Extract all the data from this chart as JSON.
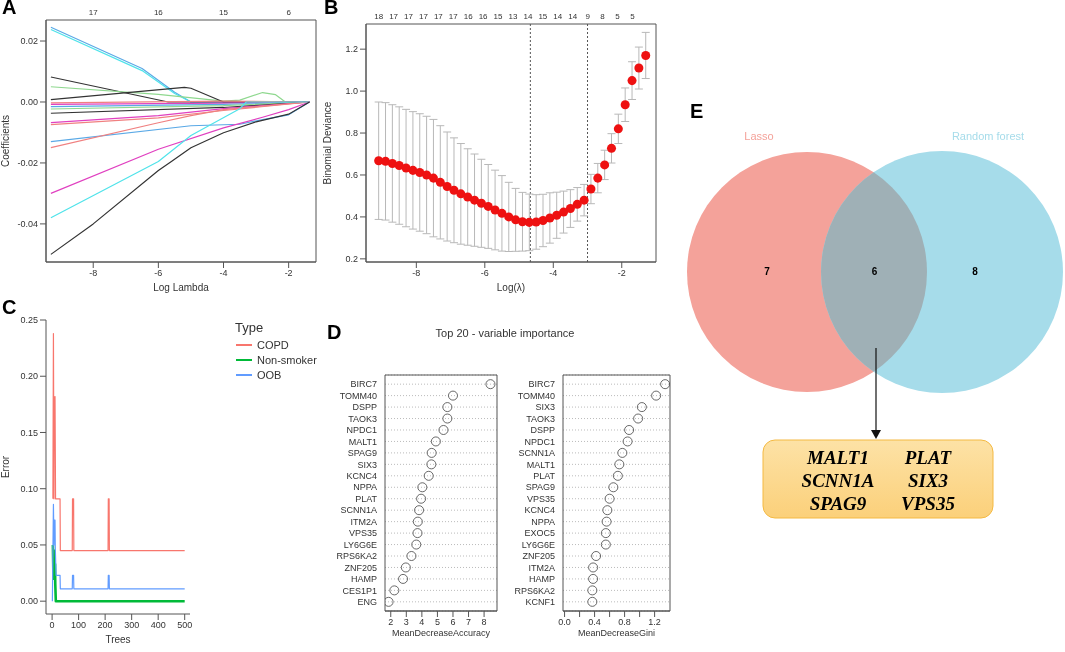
{
  "chart_data": [
    {
      "type": "line",
      "annotations": [
        "A",
        "17",
        "16",
        "15",
        "6"
      ],
      "xlabel": "Log Lambda",
      "ylabel": "Coefficients",
      "xlim": [
        -9.45,
        -1.16
      ],
      "xticks": [
        -8,
        -6,
        -4,
        -2
      ],
      "ylim": [
        -0.0525,
        0.0269
      ],
      "yticks": [
        -0.04,
        -0.02,
        {
          "value": 0,
          "label": "0.00"
        },
        0.02
      ],
      "line_style": "solid",
      "series": [
        {
          "color": "#5aa9e6",
          "x": [
            -9.3,
            -6.5,
            -5.5,
            -5.0,
            -1.36
          ],
          "values": [
            0.0245,
            0.011,
            0.0032,
            0.0,
            0.0
          ]
        },
        {
          "color": "#4fe3ea",
          "x": [
            -9.3,
            -6.5,
            -5.5,
            -5.0,
            -1.36
          ],
          "values": [
            0.0238,
            0.0103,
            0.0028,
            0.0,
            0.0
          ]
        },
        {
          "color": "#333333",
          "x": [
            -9.3,
            -5.7,
            -1.36
          ],
          "values": [
            0.0082,
            0.0,
            0.0
          ]
        },
        {
          "color": "#8fd88f",
          "x": [
            -9.3,
            -6,
            -4,
            -3.5,
            -2.8,
            -2.4,
            -2.1,
            -1.36
          ],
          "values": [
            0.005,
            0.0025,
            0.0003,
            0.0006,
            0.0031,
            0.0024,
            0.0,
            0.0
          ]
        },
        {
          "color": "#333333",
          "x": [
            -9.3,
            -5.2,
            -5.0,
            -4.0,
            -1.36
          ],
          "values": [
            0.0008,
            0.0048,
            0.0045,
            0.0,
            0.0
          ]
        },
        {
          "color": "#f08080",
          "x": [
            -9.3,
            -4,
            -1.36
          ],
          "values": [
            -0.0003,
            0.0003,
            0.0
          ]
        },
        {
          "color": "#e040c0",
          "x": [
            -9.3,
            -4,
            -1.36
          ],
          "values": [
            -0.0008,
            -0.0004,
            0.0
          ]
        },
        {
          "color": "#5aa9e6",
          "x": [
            -9.3,
            -4,
            -1.36
          ],
          "values": [
            -0.0015,
            -0.0008,
            0.0
          ]
        },
        {
          "color": "#8fd88f",
          "x": [
            -9.3,
            -4,
            -1.36
          ],
          "values": [
            -0.0023,
            -0.0012,
            0.0
          ]
        },
        {
          "color": "#333333",
          "x": [
            -9.3,
            -4,
            -1.36
          ],
          "values": [
            -0.0037,
            -0.0018,
            0.0
          ]
        },
        {
          "color": "#e040c0",
          "x": [
            -9.3,
            -6,
            -4,
            -1.36
          ],
          "values": [
            -0.0068,
            -0.0045,
            -0.0022,
            0.0
          ]
        },
        {
          "color": "#f08080",
          "x": [
            -9.3,
            -6,
            -4,
            -1.36
          ],
          "values": [
            -0.0074,
            -0.0052,
            -0.0028,
            0.0
          ]
        },
        {
          "color": "#5aa9e6",
          "x": [
            -9.3,
            -5,
            -3.5,
            -2.8,
            -2,
            -1.36
          ],
          "values": [
            -0.013,
            -0.0078,
            -0.0073,
            -0.0058,
            -0.0042,
            0.0
          ]
        },
        {
          "color": "#f08080",
          "x": [
            -9.3,
            -6,
            -5,
            -4,
            -1.36
          ],
          "values": [
            -0.015,
            -0.0068,
            -0.0045,
            -0.0025,
            0.0
          ]
        },
        {
          "color": "#e040c0",
          "x": [
            -9.3,
            -6,
            -4,
            -2.8,
            -2,
            -1.36
          ],
          "values": [
            -0.03,
            -0.0155,
            -0.0085,
            -0.005,
            -0.0025,
            0.0
          ]
        },
        {
          "color": "#4fe3ea",
          "x": [
            -9.3,
            -6,
            -5,
            -3.5,
            -3.3,
            -1.36
          ],
          "values": [
            -0.038,
            -0.0195,
            -0.011,
            -0.0022,
            0.0,
            0.0
          ]
        },
        {
          "color": "#333333",
          "x": [
            -9.3,
            -8,
            -6,
            -5.6,
            -5,
            -4,
            -3,
            -2,
            -1.36
          ],
          "values": [
            -0.05,
            -0.04,
            -0.0225,
            -0.0195,
            -0.015,
            -0.0101,
            -0.0065,
            -0.004,
            0.0
          ]
        }
      ]
    },
    {
      "type": "scatter",
      "annotations": [
        "B",
        "18",
        "17",
        "17",
        "17",
        "17",
        "17",
        "16",
        "16",
        "15",
        "13",
        "14",
        "15",
        "14",
        "14",
        "9",
        "8",
        "5",
        "5"
      ],
      "xlabel": "Log(λ)",
      "ylabel": "Binomial Deviance",
      "marker": "circle",
      "xlim": [
        -9.47,
        -1.0
      ],
      "xticks": [
        -8,
        -6,
        -4,
        -2
      ],
      "ylim": [
        0.185,
        1.32
      ],
      "yticks": [
        0.2,
        0.4,
        0.6,
        0.8,
        {
          "value": 1.0,
          "label": "1.0"
        },
        1.2
      ],
      "ref_lines": [
        {
          "axis": "x",
          "value": -4.67,
          "line_style": "dotted",
          "color": "#555555"
        },
        {
          "axis": "x",
          "value": -3.0,
          "line_style": "dotted",
          "color": "#555555"
        }
      ],
      "x": [
        -9.1,
        -8.9,
        -8.7,
        -8.5,
        -8.3,
        -8.1,
        -7.9,
        -7.7,
        -7.5,
        -7.3,
        -7.1,
        -6.9,
        -6.7,
        -6.5,
        -6.3,
        -6.1,
        -5.9,
        -5.7,
        -5.5,
        -5.3,
        -5.1,
        -4.9,
        -4.7,
        -4.5,
        -4.3,
        -4.1,
        -3.9,
        -3.7,
        -3.5,
        -3.3,
        -3.1,
        -2.9,
        -2.7,
        -2.5,
        -2.3,
        -2.1,
        -1.9,
        -1.7,
        -1.5,
        -1.3
      ],
      "series": [
        {
          "color": "#ee1111",
          "values": [
            0.668,
            0.665,
            0.655,
            0.645,
            0.633,
            0.622,
            0.612,
            0.6,
            0.585,
            0.565,
            0.545,
            0.527,
            0.51,
            0.495,
            0.48,
            0.465,
            0.45,
            0.433,
            0.417,
            0.4,
            0.386,
            0.377,
            0.374,
            0.376,
            0.383,
            0.395,
            0.408,
            0.423,
            0.44,
            0.46,
            0.48,
            0.533,
            0.585,
            0.648,
            0.727,
            0.82,
            0.935,
            1.05,
            1.11,
            1.17
          ],
          "errors": [
            0.28,
            0.28,
            0.28,
            0.28,
            0.28,
            0.28,
            0.28,
            0.28,
            0.28,
            0.27,
            0.26,
            0.25,
            0.24,
            0.23,
            0.22,
            0.21,
            0.2,
            0.19,
            0.18,
            0.165,
            0.15,
            0.14,
            0.135,
            0.13,
            0.125,
            0.12,
            0.11,
            0.1,
            0.09,
            0.08,
            0.075,
            0.07,
            0.07,
            0.07,
            0.07,
            0.07,
            0.08,
            0.09,
            0.1,
            0.11
          ]
        }
      ]
    },
    {
      "type": "line",
      "annotations": [
        "C"
      ],
      "xlabel": "Trees",
      "ylabel": "Error",
      "legend": "top right",
      "legend_title": "Type",
      "xlim": [
        -23,
        520
      ],
      "xticks": [
        0,
        100,
        200,
        300,
        400,
        500
      ],
      "ylim": [
        -0.0114,
        0.25
      ],
      "yticks": [
        {
          "value": 0,
          "label": "0.00"
        },
        {
          "value": 0.05,
          "label": "0.05"
        },
        {
          "value": 0.1,
          "label": "0.10"
        },
        {
          "value": 0.15,
          "label": "0.15"
        },
        {
          "value": 0.2,
          "label": "0.20"
        },
        {
          "value": 0.25,
          "label": "0.25"
        }
      ],
      "series": [
        {
          "name": "COPD",
          "color": "#f8766d",
          "x": [
            3,
            5,
            7,
            8,
            10,
            11,
            13,
            30,
            31,
            76,
            77,
            81,
            82,
            211,
            212,
            215,
            216,
            500
          ],
          "values": [
            0.091,
            0.238,
            0.091,
            0.182,
            0.136,
            0.182,
            0.091,
            0.091,
            0.045,
            0.045,
            0.091,
            0.091,
            0.045,
            0.045,
            0.091,
            0.091,
            0.045,
            0.045
          ]
        },
        {
          "name": "Non-smoker",
          "color": "#00ba38",
          "x": [
            3,
            5,
            7,
            9,
            11,
            12,
            14,
            500
          ],
          "values": [
            0.05,
            0.02,
            0.045,
            0.03,
            0.033,
            0.015,
            0.0,
            0.0
          ]
        },
        {
          "name": "OOB",
          "color": "#619cff",
          "x": [
            1,
            5,
            7,
            8,
            11,
            12,
            15,
            30,
            31,
            76,
            77,
            81,
            82,
            211,
            212,
            215,
            216,
            500
          ],
          "values": [
            0.0,
            0.086,
            0.05,
            0.072,
            0.072,
            0.047,
            0.023,
            0.023,
            0.011,
            0.011,
            0.023,
            0.023,
            0.011,
            0.011,
            0.023,
            0.023,
            0.011,
            0.011
          ]
        }
      ]
    },
    {
      "type": "scatter",
      "orientation": "horizontal",
      "annotations": [
        "D"
      ],
      "title": "Top 20 - variable importance",
      "xlabel": "MeanDecreaseAccuracy",
      "grid": "y",
      "marker": "circle",
      "xlim": [
        1.63,
        8.83
      ],
      "xticks": [
        2,
        3,
        4,
        5,
        6,
        7,
        8
      ],
      "categories": [
        "BIRC7",
        "TOMM40",
        "DSPP",
        "TAOK3",
        "NPDC1",
        "MALT1",
        "SPAG9",
        "SIX3",
        "KCNC4",
        "NPPA",
        "PLAT",
        "SCNN1A",
        "ITM2A",
        "VPS35",
        "LY6G6E",
        "RPS6KA2",
        "ZNF205",
        "HAMP",
        "CES1P1",
        "ENG"
      ],
      "values": [
        8.41,
        6.0,
        5.64,
        5.64,
        5.39,
        4.9,
        4.63,
        4.61,
        4.44,
        4.03,
        3.95,
        3.82,
        3.74,
        3.72,
        3.64,
        3.33,
        2.97,
        2.79,
        2.23,
        1.86
      ]
    },
    {
      "type": "scatter",
      "orientation": "horizontal",
      "xlabel": "MeanDecreaseGini",
      "grid": "y",
      "marker": "circle",
      "xlim": [
        -0.021,
        1.405
      ],
      "xticks": [
        {
          "value": 0,
          "label": "0.0"
        },
        {
          "value": 0.2,
          "label": null
        },
        0.4,
        {
          "value": 0.6,
          "label": null
        },
        0.8,
        {
          "value": 1.0,
          "label": null
        },
        1.2
      ],
      "categories": [
        "BIRC7",
        "TOMM40",
        "SIX3",
        "TAOK3",
        "DSPP",
        "NPDC1",
        "SCNN1A",
        "MALT1",
        "PLAT",
        "SPAG9",
        "VPS35",
        "KCNC4",
        "NPPA",
        "EXOC5",
        "LY6G6E",
        "ZNF205",
        "ITM2A",
        "HAMP",
        "RPS6KA2",
        "KCNF1"
      ],
      "values": [
        1.34,
        1.22,
        1.03,
        0.98,
        0.86,
        0.84,
        0.77,
        0.73,
        0.71,
        0.65,
        0.6,
        0.57,
        0.56,
        0.55,
        0.55,
        0.42,
        0.38,
        0.38,
        0.37,
        0.37
      ]
    },
    {
      "type": "other",
      "data_labels": true,
      "annotations": [
        "E",
        "MALT1",
        "PLAT",
        "SCNN1A",
        "SIX3",
        "SPAG9",
        "VPS35"
      ],
      "categories": [
        "Lasso",
        null,
        "Random forest"
      ],
      "values": [
        7,
        6,
        8
      ],
      "colors": [
        "#f4a29a",
        "#9fb0b6",
        "#a6dcea"
      ]
    }
  ]
}
